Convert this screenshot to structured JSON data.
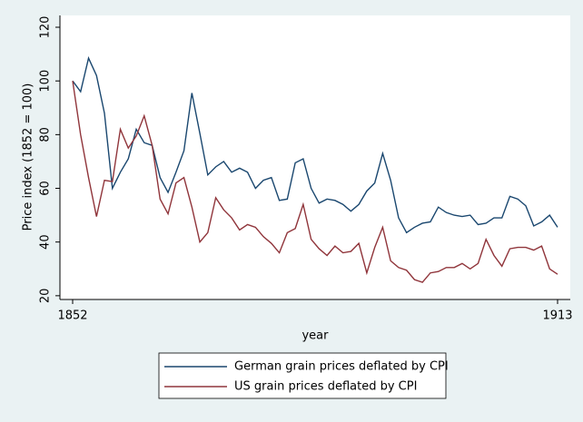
{
  "chart_data": {
    "type": "line",
    "x_label": "year",
    "y_label": "Price index (1852 = 100)",
    "x": [
      1852,
      1853,
      1854,
      1855,
      1856,
      1857,
      1858,
      1859,
      1860,
      1861,
      1862,
      1863,
      1864,
      1865,
      1866,
      1867,
      1868,
      1869,
      1870,
      1871,
      1872,
      1873,
      1874,
      1875,
      1876,
      1877,
      1878,
      1879,
      1880,
      1881,
      1882,
      1883,
      1884,
      1885,
      1886,
      1887,
      1888,
      1889,
      1890,
      1891,
      1892,
      1893,
      1894,
      1895,
      1896,
      1897,
      1898,
      1899,
      1900,
      1901,
      1902,
      1903,
      1904,
      1905,
      1906,
      1907,
      1908,
      1909,
      1910,
      1911,
      1912,
      1913
    ],
    "series": [
      {
        "name": "German grain prices deflated by CPI",
        "color": "#1a476f",
        "values": [
          100,
          96,
          108.5,
          102,
          88,
          60,
          66,
          71,
          82,
          77,
          76,
          64,
          58.5,
          66,
          74,
          95.5,
          80.5,
          65,
          68,
          70,
          66,
          67.5,
          66,
          60,
          63,
          64,
          55.5,
          56,
          69.5,
          71,
          60,
          54.5,
          56,
          55.5,
          54,
          51.5,
          54,
          59,
          62,
          73,
          63,
          49,
          43.5,
          45.5,
          47,
          47.5,
          53,
          51,
          50,
          49.5,
          50,
          46.5,
          47,
          49,
          49,
          57,
          56,
          53.5,
          46,
          47.5,
          50,
          45.5
        ]
      },
      {
        "name": "US grain prices deflated by CPI",
        "color": "#90353b",
        "values": [
          100,
          80,
          64,
          49.5,
          63,
          62.5,
          82,
          75,
          79.5,
          87,
          76,
          56,
          50.5,
          62,
          64,
          53,
          40,
          43.5,
          56.5,
          52,
          49,
          44.5,
          46.5,
          45.5,
          42,
          39.5,
          36,
          43.5,
          45,
          54,
          41,
          37.5,
          35,
          38.5,
          36,
          36.5,
          39.5,
          28.5,
          38,
          45.5,
          33,
          30.5,
          29.5,
          26,
          25,
          28.5,
          29,
          30.5,
          30.5,
          32,
          30,
          32,
          41,
          35,
          31,
          37.5,
          38,
          38,
          37,
          38.5,
          30,
          28
        ]
      }
    ],
    "xlim": [
      1850.4,
      1914.6
    ],
    "xticks": [
      1852,
      1913
    ],
    "ylim": [
      18.6,
      124.4
    ],
    "yticks": [
      20,
      40,
      60,
      80,
      100,
      120
    ],
    "grid": false
  }
}
